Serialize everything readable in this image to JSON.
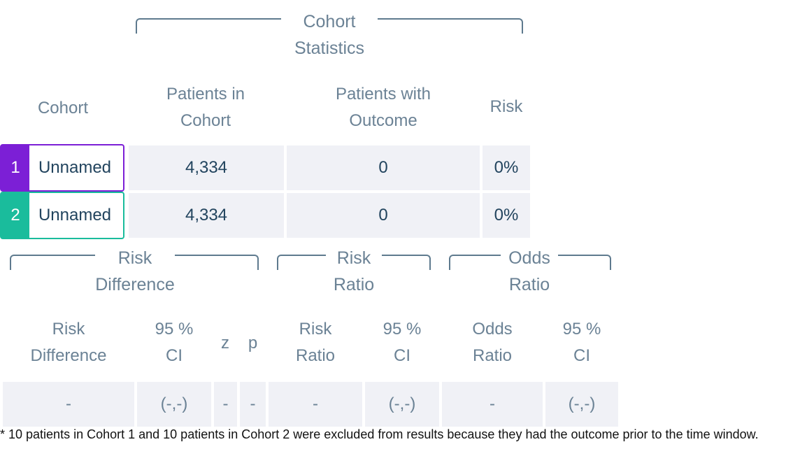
{
  "colors": {
    "cohort1": "#7c1fd6",
    "cohort2": "#1abc9c",
    "cell_bg": "#f0f1f6",
    "header_text": "#6b8295",
    "value_text": "#22445e"
  },
  "cohort_statistics": {
    "group_label_line1": "Cohort",
    "group_label_line2": "Statistics",
    "headers": {
      "cohort": "Cohort",
      "patients_line1": "Patients in",
      "patients_line2": "Cohort",
      "outcome_line1": "Patients with",
      "outcome_line2": "Outcome",
      "risk": "Risk"
    },
    "rows": [
      {
        "number": "1",
        "name": "Unnamed",
        "patients": "4,334",
        "outcome": "0",
        "risk": "0%"
      },
      {
        "number": "2",
        "name": "Unnamed",
        "patients": "4,334",
        "outcome": "0",
        "risk": "0%"
      }
    ]
  },
  "comparison": {
    "risk_difference_group": {
      "line1": "Risk",
      "line2": "Difference"
    },
    "risk_ratio_group": {
      "line1": "Risk",
      "line2": "Ratio"
    },
    "odds_ratio_group": {
      "line1": "Odds",
      "line2": "Ratio"
    },
    "headers": {
      "rd_line1": "Risk",
      "rd_line2": "Difference",
      "rd_ci_line1": "95 %",
      "rd_ci_line2": "CI",
      "z": "z",
      "p": "p",
      "rr_line1": "Risk",
      "rr_line2": "Ratio",
      "rr_ci_line1": "95 %",
      "rr_ci_line2": "CI",
      "or_line1": "Odds",
      "or_line2": "Ratio",
      "or_ci_line1": "95 %",
      "or_ci_line2": "CI"
    },
    "values": {
      "risk_difference": "-",
      "rd_ci": "(-,-)",
      "z": "-",
      "p": "-",
      "risk_ratio": "-",
      "rr_ci": "(-,-)",
      "odds_ratio": "-",
      "or_ci": "(-,-)"
    }
  },
  "footnote": "* 10 patients in Cohort 1 and 10 patients in Cohort 2 were excluded from results because they had the outcome prior to the time window."
}
